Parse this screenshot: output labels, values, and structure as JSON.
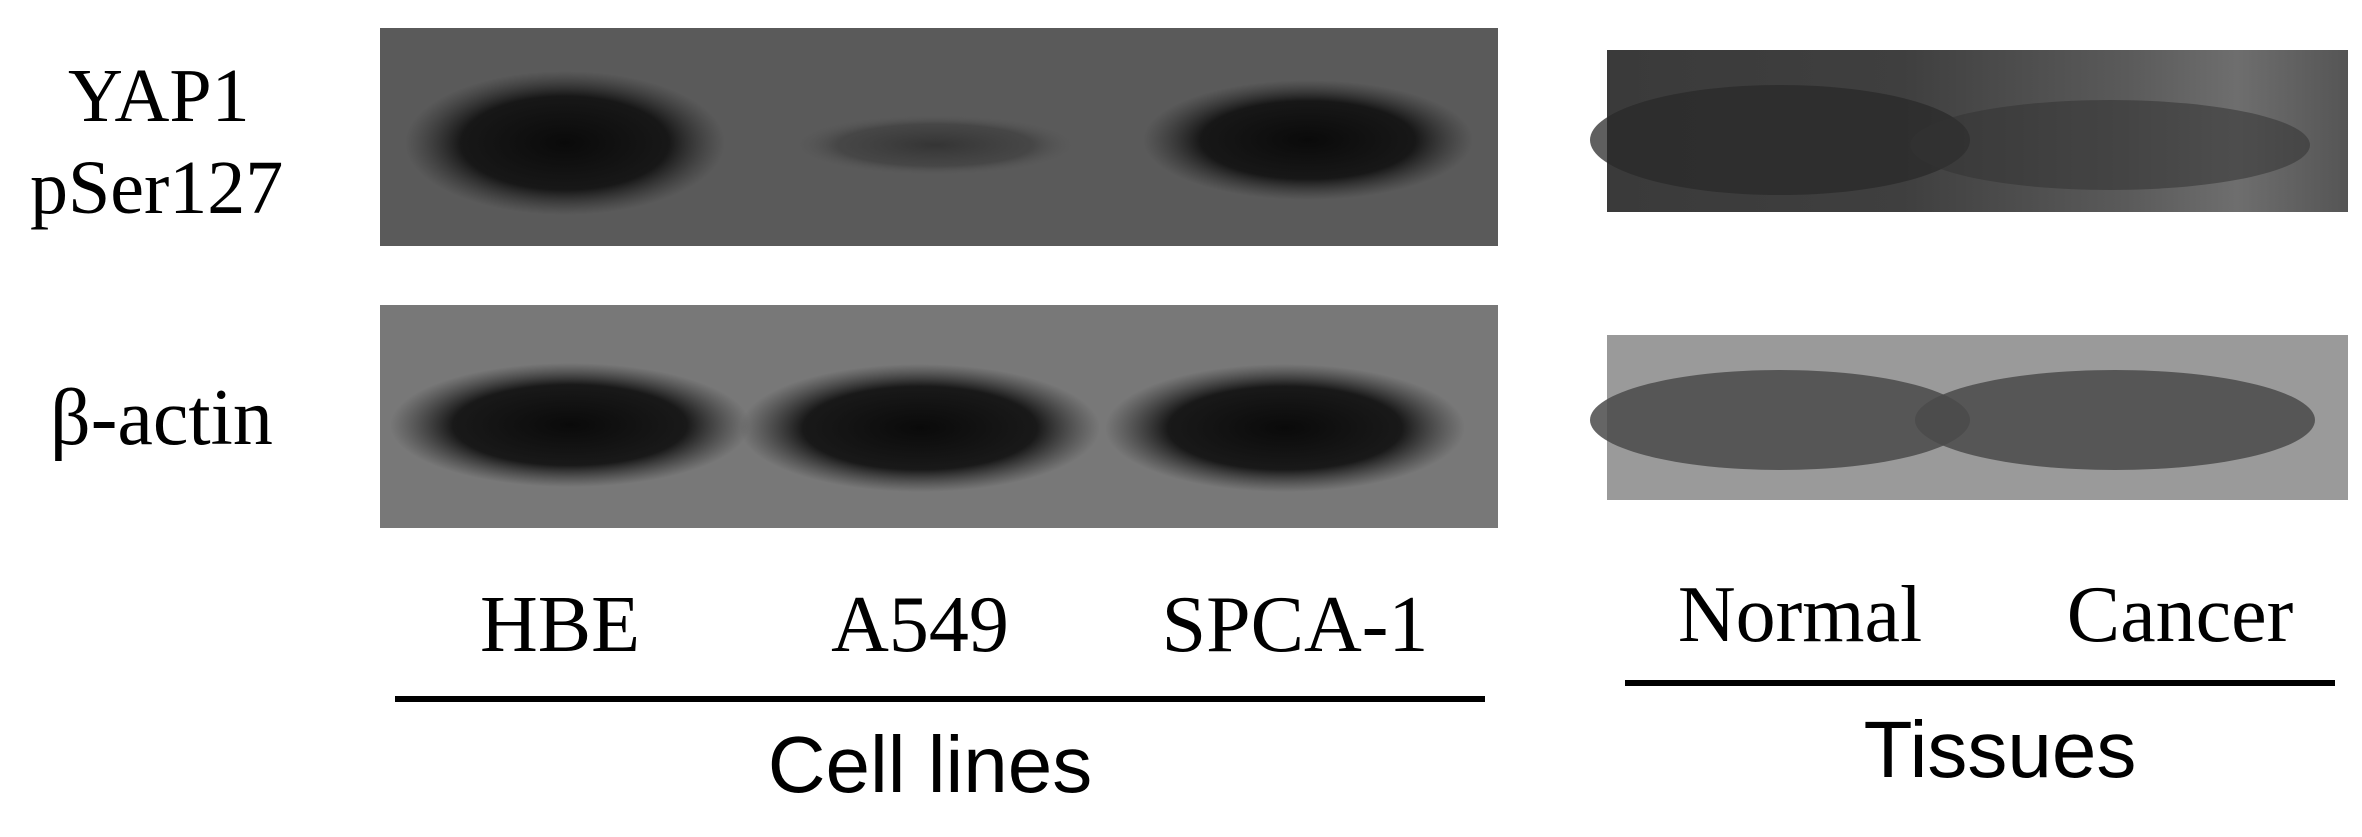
{
  "row_labels": {
    "yap1_line1": "YAP1",
    "yap1_line2": "pSer127",
    "actin": "β-actin"
  },
  "lanes": {
    "cell_lines": [
      "HBE",
      "A549",
      "SPCA-1"
    ],
    "tissues": [
      "Normal",
      "Cancer"
    ]
  },
  "groups": {
    "cell_lines": "Cell lines",
    "tissues": "Tissues"
  },
  "band_intensity": {
    "yap1_cell_lines": [
      1.0,
      0.45,
      0.85
    ],
    "actin_cell_lines": [
      0.95,
      0.95,
      0.95
    ],
    "yap1_tissues": [
      0.55,
      0.35
    ],
    "actin_tissues": [
      0.7,
      0.7
    ]
  }
}
